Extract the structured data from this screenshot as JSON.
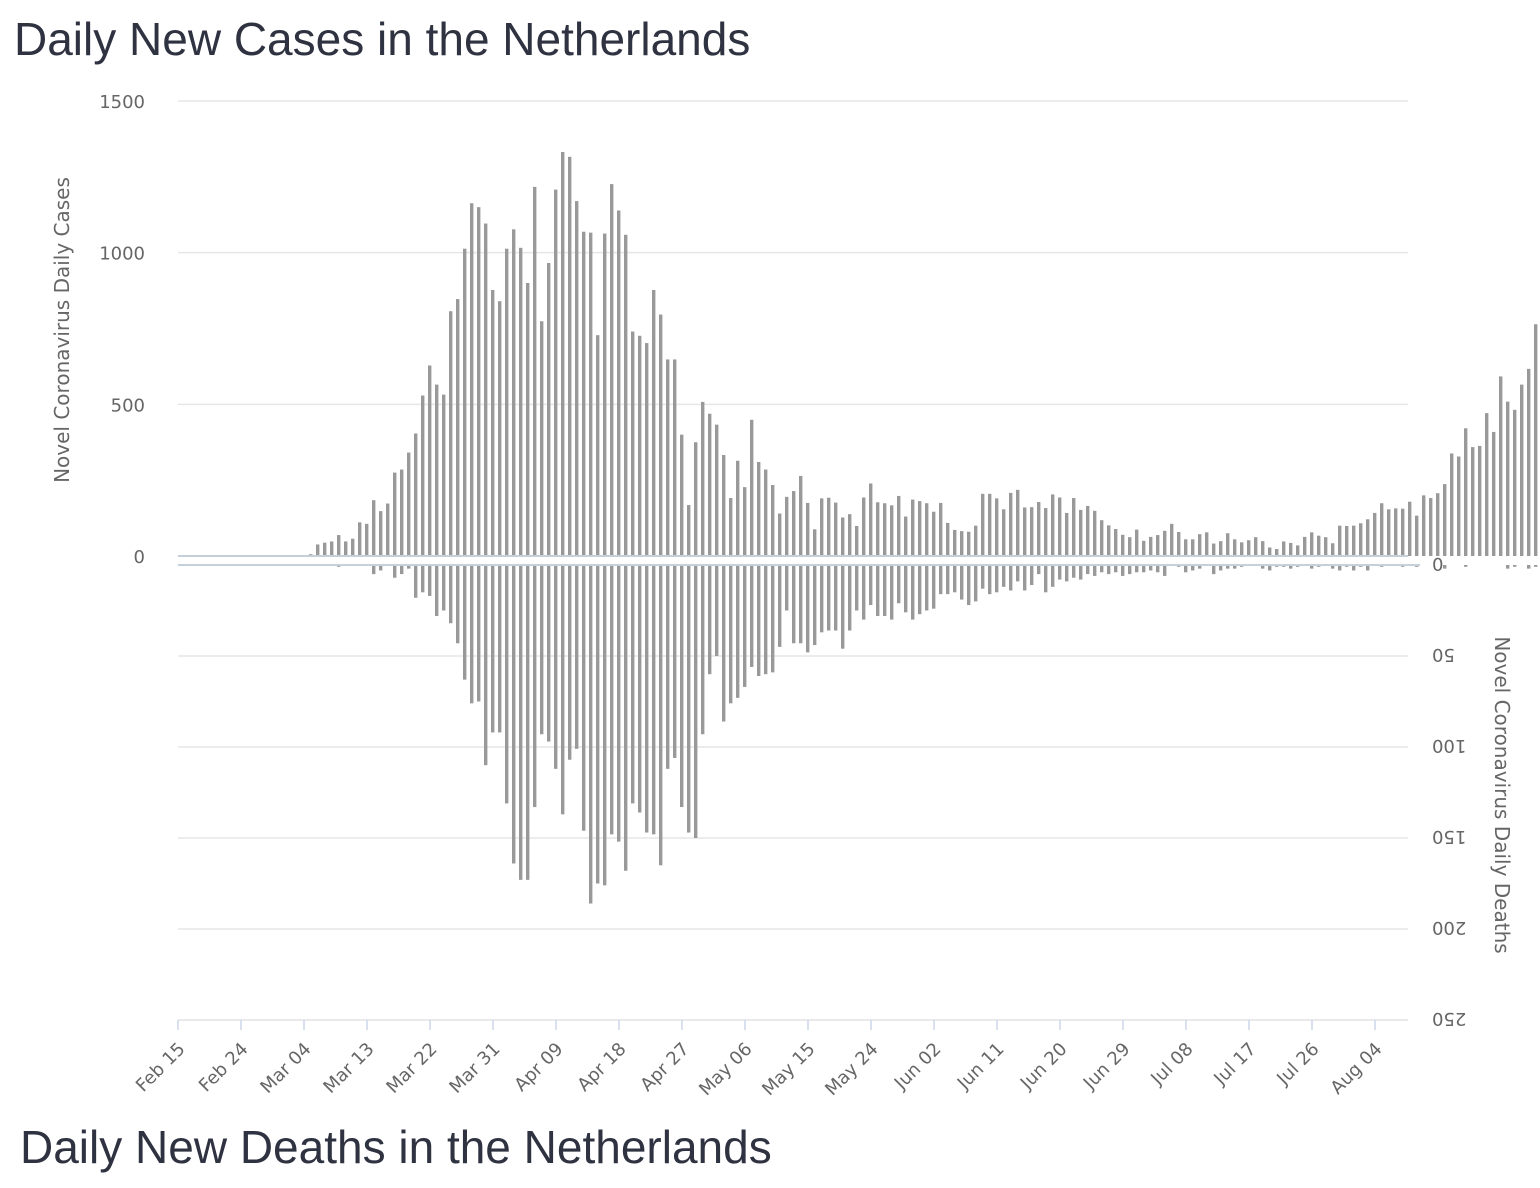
{
  "titles": {
    "cases": "Daily New Cases in the Netherlands",
    "deaths": "Daily New Deaths in the Netherlands"
  },
  "colors": {
    "bar": "#999999",
    "grid": "#e6e6e6",
    "zero_line": "#c5d0da",
    "text": "#666666",
    "title": "#2f3240"
  },
  "chart_data": [
    {
      "type": "bar",
      "title": "Daily New Cases in the Netherlands",
      "ylabel": "Novel Coronavirus Daily Cases",
      "ylim": [
        0,
        1500
      ],
      "yticks": [
        "0",
        "500",
        "1000",
        "1500"
      ],
      "x_start": "Feb 15",
      "x_tick_labels": [
        "Feb 15",
        "Feb 24",
        "Mar 04",
        "Mar 13",
        "Mar 22",
        "Mar 31",
        "Apr 09",
        "Apr 18",
        "Apr 27",
        "May 06",
        "May 15",
        "May 24",
        "Jun 02",
        "Jun 11",
        "Jun 20",
        "Jun 29",
        "Jul 08",
        "Jul 17",
        "Jul 26",
        "Aug 04"
      ],
      "grid": true,
      "values": [
        0,
        0,
        0,
        0,
        0,
        0,
        0,
        0,
        0,
        0,
        0,
        0,
        0,
        0,
        0,
        0,
        0,
        0,
        6,
        38,
        44,
        48,
        69,
        48,
        57,
        111,
        106,
        184,
        148,
        173,
        275,
        285,
        341,
        404,
        529,
        628,
        565,
        532,
        807,
        847,
        1013,
        1163,
        1150,
        1096,
        877,
        840,
        1013,
        1077,
        1016,
        900,
        1217,
        774,
        966,
        1208,
        1332,
        1316,
        1170,
        1069,
        1066,
        728,
        1063,
        1226,
        1139,
        1059,
        740,
        726,
        702,
        877,
        796,
        648,
        648,
        400,
        168,
        375,
        508,
        469,
        433,
        333,
        191,
        314,
        227,
        449,
        310,
        285,
        234,
        140,
        195,
        214,
        264,
        175,
        88,
        190,
        192,
        176,
        127,
        138,
        99,
        193,
        239,
        177,
        174,
        167,
        198,
        130,
        186,
        181,
        174,
        146,
        175,
        109,
        86,
        82,
        80,
        100,
        205,
        205,
        190,
        154,
        208,
        218,
        160,
        161,
        178,
        158,
        203,
        193,
        142,
        191,
        152,
        165,
        149,
        118,
        101,
        89,
        70,
        62,
        87,
        50,
        63,
        69,
        83,
        106,
        79,
        55,
        55,
        72,
        78,
        41,
        49,
        75,
        55,
        45,
        52,
        62,
        49,
        28,
        23,
        48,
        43,
        35,
        63,
        78,
        67,
        62,
        42,
        100,
        99,
        100,
        108,
        121,
        142,
        174,
        154,
        157,
        156,
        179,
        133,
        200,
        191,
        207,
        237,
        338,
        328,
        421,
        359,
        363,
        471,
        409,
        592,
        509,
        482,
        565,
        617,
        764
      ]
    },
    {
      "type": "bar",
      "title": "Daily New Deaths in the Netherlands",
      "ylabel": "Novel Coronavirus Daily Deaths",
      "ylim": [
        0,
        250
      ],
      "yticks": [
        "0",
        "50",
        "100",
        "150",
        "200",
        "250"
      ],
      "y_inverted": true,
      "x_start": "Feb 15",
      "grid": true,
      "values": [
        0,
        0,
        0,
        0,
        0,
        0,
        0,
        0,
        0,
        0,
        0,
        0,
        0,
        0,
        0,
        0,
        0,
        0,
        0,
        0,
        0,
        0,
        1,
        0,
        0,
        0,
        0,
        5,
        3,
        0,
        7,
        5,
        2,
        18,
        15,
        17,
        28,
        25,
        32,
        43,
        63,
        76,
        75,
        110,
        92,
        92,
        131,
        164,
        173,
        173,
        133,
        93,
        97,
        112,
        137,
        107,
        101,
        146,
        186,
        175,
        176,
        148,
        152,
        168,
        131,
        136,
        147,
        148,
        165,
        112,
        106,
        133,
        147,
        150,
        93,
        60,
        50,
        86,
        76,
        73,
        67,
        56,
        61,
        60,
        59,
        45,
        25,
        43,
        43,
        48,
        44,
        37,
        36,
        36,
        46,
        36,
        25,
        30,
        22,
        28,
        28,
        30,
        21,
        26,
        30,
        27,
        25,
        24,
        16,
        16,
        15,
        19,
        22,
        20,
        13,
        16,
        15,
        12,
        14,
        9,
        14,
        11,
        5,
        15,
        12,
        8,
        9,
        7,
        8,
        5,
        6,
        4,
        5,
        4,
        6,
        5,
        4,
        4,
        3,
        4,
        6,
        0,
        1,
        4,
        3,
        2,
        0,
        5,
        3,
        2,
        2,
        1,
        0,
        0,
        2,
        3,
        1,
        1,
        2,
        1,
        0,
        2,
        1,
        0,
        2,
        3,
        1,
        3,
        1,
        3,
        0,
        1,
        0,
        0,
        1,
        0,
        1,
        0,
        0,
        0,
        2,
        0,
        0,
        1,
        0,
        0,
        0,
        0,
        0,
        2,
        1,
        0,
        2,
        1,
        0,
        0,
        0,
        0,
        0,
        0,
        0,
        2,
        0,
        0,
        1,
        0,
        0,
        2,
        0,
        0,
        1
      ]
    }
  ]
}
